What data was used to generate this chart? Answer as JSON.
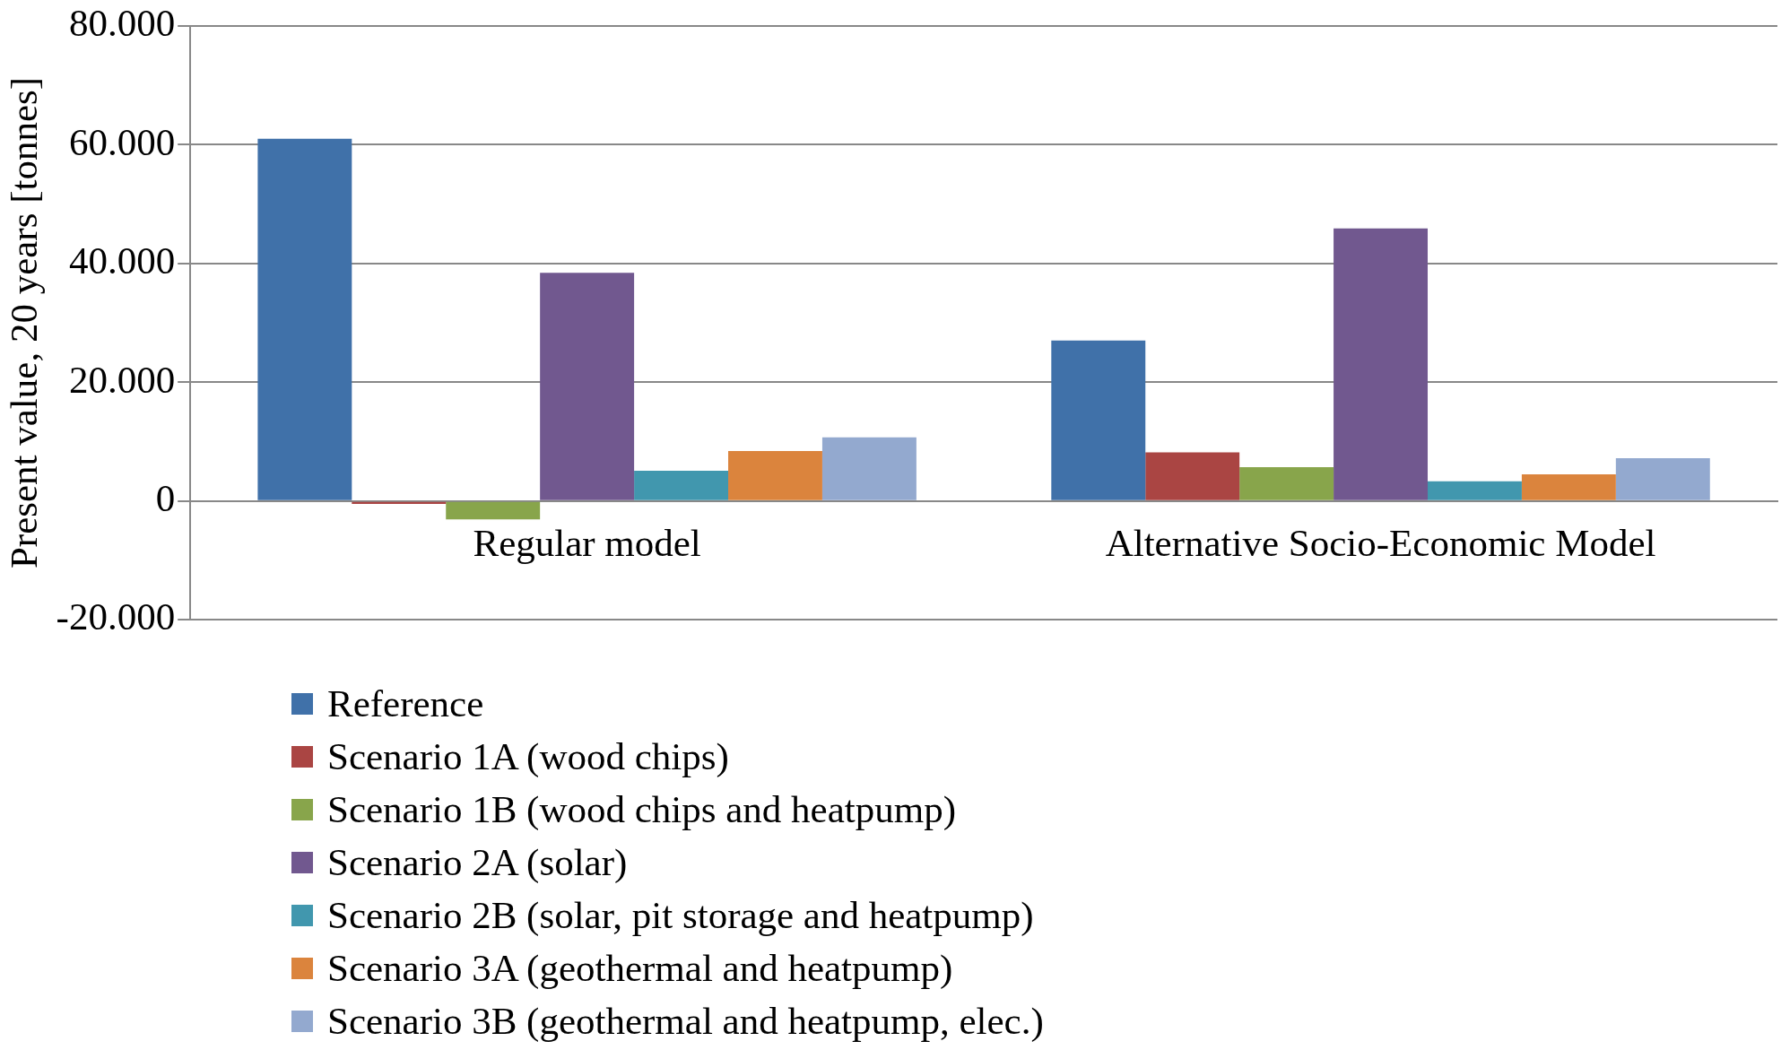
{
  "chart_data": {
    "type": "bar",
    "ylabel": "Present value, 20 years [tonnes]",
    "categories": [
      "Regular model",
      "Alternative Socio-Economic Model"
    ],
    "series": [
      {
        "name": "Reference",
        "color": "#4071a9",
        "values": [
          61000,
          27000
        ]
      },
      {
        "name": "Scenario 1A (wood chips)",
        "color": "#aa4543",
        "values": [
          -500,
          8200
        ]
      },
      {
        "name": "Scenario 1B (wood chips and heatpump)",
        "color": "#88a54b",
        "values": [
          -3100,
          5700
        ]
      },
      {
        "name": "Scenario 2A (solar)",
        "color": "#71588f",
        "values": [
          38400,
          45900
        ]
      },
      {
        "name": "Scenario 2B (solar, pit storage and heatpump)",
        "color": "#4197ae",
        "values": [
          5100,
          3300
        ]
      },
      {
        "name": "Scenario 3A (geothermal and heatpump)",
        "color": "#db843d",
        "values": [
          8400,
          4500
        ]
      },
      {
        "name": "Scenario 3B (geothermal and heatpump, elec.)",
        "color": "#93a9cf",
        "values": [
          10700,
          7200
        ]
      }
    ],
    "ylim": [
      -20000,
      80000
    ],
    "yticks": [
      {
        "value": -20000,
        "label": "-20.000"
      },
      {
        "value": 0,
        "label": "0"
      },
      {
        "value": 20000,
        "label": "20.000"
      },
      {
        "value": 40000,
        "label": "40.000"
      },
      {
        "value": 60000,
        "label": "60.000"
      },
      {
        "value": 80000,
        "label": "80.000"
      }
    ],
    "grid": "y",
    "legend": "bottom"
  }
}
